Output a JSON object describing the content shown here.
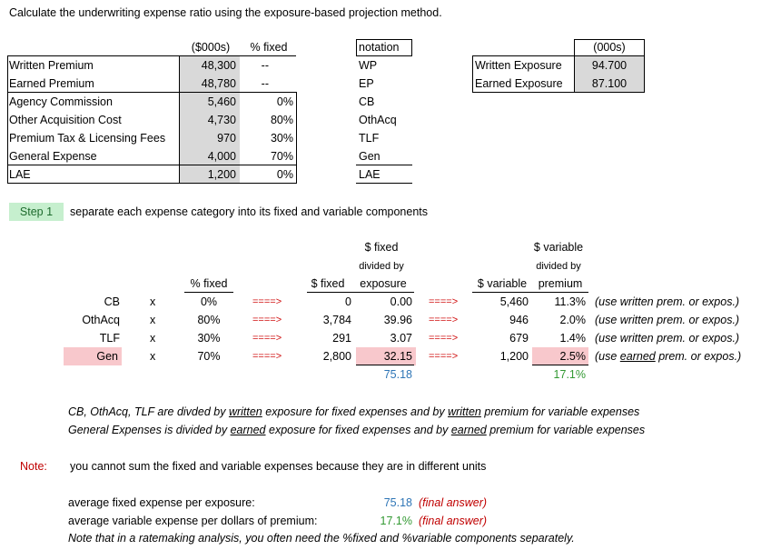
{
  "title": "Calculate the underwriting expense ratio using the exposure-based projection method.",
  "table1": {
    "headers": {
      "amount": "($000s)",
      "pct_fixed": "% fixed"
    },
    "rows": [
      {
        "label": "Written Premium",
        "amount": "48,300",
        "pct": "--"
      },
      {
        "label": "Earned Premium",
        "amount": "48,780",
        "pct": "--"
      },
      {
        "label": "Agency Commission",
        "amount": "5,460",
        "pct": "0%"
      },
      {
        "label": "Other Acquisition Cost",
        "amount": "4,730",
        "pct": "80%"
      },
      {
        "label": "Premium Tax & Licensing Fees",
        "amount": "970",
        "pct": "30%"
      },
      {
        "label": "General Expense",
        "amount": "4,000",
        "pct": "70%"
      },
      {
        "label": "LAE",
        "amount": "1,200",
        "pct": "0%"
      }
    ]
  },
  "notation": {
    "header": "notation",
    "items": [
      "WP",
      "EP",
      "CB",
      "OthAcq",
      "TLF",
      "Gen",
      "LAE"
    ]
  },
  "exposure": {
    "header": "(000s)",
    "rows": [
      {
        "label": "Written Exposure",
        "value": "94.700"
      },
      {
        "label": "Earned Exposure",
        "value": "87.100"
      }
    ]
  },
  "step1": {
    "badge": "Step 1",
    "text": "separate each expense category into its fixed and variable components"
  },
  "table2": {
    "headers": {
      "pct_fixed": "% fixed",
      "fixed": "$ fixed",
      "fixed_div_top": "$ fixed",
      "fixed_div_mid": "divided by",
      "fixed_div_bot": "exposure",
      "variable": "$ variable",
      "var_div_top": "$ variable",
      "var_div_mid": "divided by",
      "var_div_bot": "premium"
    },
    "x": "x",
    "arrow": "====>",
    "rows": [
      {
        "label": "CB",
        "pct": "0%",
        "fixed": "0",
        "fixed_per": "0.00",
        "variable": "5,460",
        "var_pct": "11.3%",
        "note": "(use written prem. or expos.)"
      },
      {
        "label": "OthAcq",
        "pct": "80%",
        "fixed": "3,784",
        "fixed_per": "39.96",
        "variable": "946",
        "var_pct": "2.0%",
        "note": "(use written prem. or expos.)"
      },
      {
        "label": "TLF",
        "pct": "30%",
        "fixed": "291",
        "fixed_per": "3.07",
        "variable": "679",
        "var_pct": "1.4%",
        "note": "(use written prem. or expos.)"
      },
      {
        "label": "Gen",
        "pct": "70%",
        "fixed": "2,800",
        "fixed_per": "32.15",
        "variable": "1,200",
        "var_pct": "2.5%",
        "note_pre": "(use ",
        "note_ul": "earned",
        "note_post": " prem. or expos.)"
      }
    ],
    "total_fixed": "75.18",
    "total_var": "17.1%"
  },
  "explain": {
    "line1_a": "CB, OthAcq, TLF are divded by ",
    "line1_u1": "written",
    "line1_b": " exposure for fixed expenses and by ",
    "line1_u2": "written",
    "line1_c": " premium for variable expenses",
    "line2_a": "General Expenses is divided by ",
    "line2_u1": "earned",
    "line2_b": " exposure for fixed expenses and by ",
    "line2_u2": "earned",
    "line2_c": " premium for variable expenses"
  },
  "note": {
    "label": "Note:",
    "text": "you cannot sum the fixed and variable expenses because they are in different units"
  },
  "summary": {
    "fixed_label": "average fixed expense per exposure:",
    "fixed_value": "75.18",
    "fixed_tag": "(final answer)",
    "var_label": "average variable expense per dollars of premium:",
    "var_value": "17.1%",
    "var_tag": "(final answer)",
    "footer": "Note that in a ratemaking analysis, you often need the %fixed and %variable components separately."
  },
  "colors": {
    "red": "#c00000",
    "blue": "#2e75b6",
    "green": "#339933",
    "step_bg": "#c6efce",
    "pink": "#f8c8cc",
    "shade": "#d9d9d9"
  }
}
